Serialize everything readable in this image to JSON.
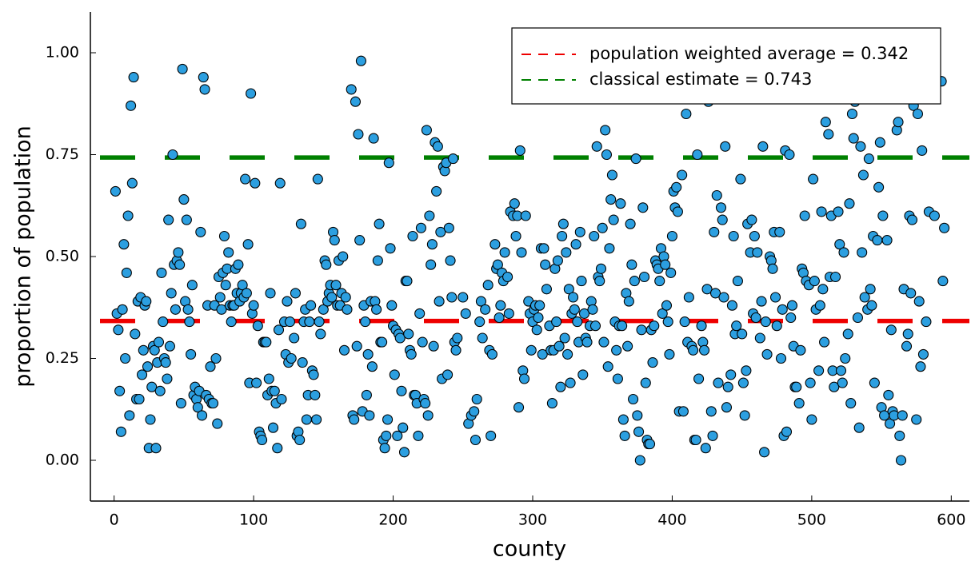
{
  "chart_data": {
    "type": "scatter",
    "xlabel": "county",
    "ylabel": "proportion of population",
    "xlim": [
      -17,
      613
    ],
    "ylim": [
      -0.1,
      1.1
    ],
    "xticks": [
      0,
      100,
      200,
      300,
      400,
      500,
      600
    ],
    "yticks": [
      {
        "value": 0,
        "label": "0.00"
      },
      {
        "value": 0.25,
        "label": "0.25"
      },
      {
        "value": 0.5,
        "label": "0.50"
      },
      {
        "value": 0.75,
        "label": "0.75"
      },
      {
        "value": 1,
        "label": "1.00"
      }
    ],
    "color": "#2c9fe0",
    "legend": "top-right",
    "hlines": [
      {
        "name": "population weighted average = 0.342",
        "value": 0.342,
        "color": "#ee0000"
      },
      {
        "name": "classical estimate = 0.743",
        "value": 0.743,
        "color": "#008000"
      }
    ],
    "x": [
      1,
      2,
      3,
      4,
      5,
      6,
      7,
      8,
      9,
      10,
      11,
      12,
      13,
      14,
      15,
      16,
      17,
      18,
      19,
      20,
      21,
      22,
      23,
      24,
      25,
      26,
      27,
      28,
      29,
      30,
      31,
      32,
      33,
      34,
      35,
      36,
      37,
      38,
      39,
      40,
      41,
      42,
      43,
      44,
      45,
      46,
      47,
      48,
      49,
      50,
      51,
      52,
      53,
      54,
      55,
      56,
      57,
      58,
      59,
      60,
      61,
      62,
      63,
      64,
      65,
      66,
      67,
      68,
      69,
      70,
      71,
      72,
      73,
      74,
      75,
      76,
      77,
      78,
      79,
      80,
      81,
      82,
      83,
      84,
      85,
      86,
      87,
      88,
      89,
      90,
      91,
      92,
      93,
      94,
      95,
      96,
      97,
      98,
      99,
      100,
      101,
      102,
      103,
      104,
      105,
      106,
      107,
      108,
      109,
      110,
      111,
      112,
      113,
      114,
      115,
      116,
      117,
      118,
      119,
      120,
      122,
      123,
      124,
      125,
      126,
      127,
      129,
      130,
      131,
      132,
      133,
      134,
      135,
      136,
      137,
      138,
      139,
      140,
      141,
      142,
      143,
      144,
      145,
      146,
      147,
      148,
      150,
      151,
      152,
      153,
      154,
      155,
      156,
      157,
      158,
      159,
      160,
      161,
      162,
      163,
      164,
      165,
      166,
      167,
      170,
      171,
      172,
      173,
      174,
      175,
      176,
      177,
      178,
      179,
      180,
      181,
      182,
      183,
      184,
      185,
      186,
      187,
      188,
      189,
      190,
      191,
      192,
      193,
      194,
      195,
      196,
      197,
      198,
      199,
      200,
      201,
      202,
      203,
      204,
      205,
      206,
      207,
      208,
      209,
      210,
      211,
      212,
      213,
      214,
      215,
      216,
      217,
      218,
      219,
      220,
      221,
      222,
      223,
      224,
      225,
      226,
      227,
      228,
      229,
      230,
      231,
      232,
      233,
      234,
      235,
      236,
      237,
      238,
      239,
      240,
      241,
      242,
      243,
      244,
      245,
      246,
      250,
      252,
      254,
      256,
      258,
      259,
      260,
      262,
      263,
      264,
      266,
      268,
      269,
      270,
      271,
      273,
      274,
      275,
      276,
      277,
      278,
      279,
      280,
      282,
      283,
      284,
      286,
      287,
      288,
      289,
      290,
      291,
      292,
      293,
      294,
      295,
      297,
      298,
      299,
      300,
      301,
      302,
      303,
      304,
      305,
      306,
      307,
      308,
      309,
      310,
      312,
      313,
      314,
      315,
      316,
      317,
      318,
      319,
      320,
      321,
      322,
      323,
      324,
      325,
      326,
      327,
      328,
      329,
      330,
      331,
      332,
      333,
      334,
      335,
      336,
      337,
      338,
      339,
      341,
      342,
      343,
      344,
      345,
      346,
      347,
      348,
      349,
      350,
      351,
      352,
      353,
      354,
      355,
      356,
      357,
      358,
      359,
      360,
      361,
      362,
      363,
      364,
      365,
      366,
      367,
      368,
      369,
      370,
      371,
      372,
      373,
      374,
      375,
      376,
      377,
      378,
      379,
      380,
      381,
      382,
      383,
      384,
      385,
      386,
      387,
      388,
      389,
      390,
      391,
      392,
      393,
      394,
      395,
      396,
      397,
      398,
      399,
      400,
      401,
      402,
      403,
      404,
      405,
      407,
      408,
      409,
      410,
      411,
      412,
      414,
      415,
      416,
      417,
      418,
      419,
      421,
      422,
      423,
      424,
      425,
      426,
      428,
      429,
      430,
      431,
      432,
      433,
      435,
      436,
      437,
      438,
      439,
      440,
      442,
      443,
      444,
      445,
      446,
      447,
      449,
      450,
      451,
      452,
      453,
      454,
      456,
      457,
      458,
      459,
      460,
      461,
      463,
      464,
      465,
      466,
      467,
      468,
      470,
      471,
      472,
      473,
      474,
      475,
      477,
      478,
      479,
      480,
      481,
      482,
      484,
      485,
      486,
      487,
      488,
      489,
      491,
      492,
      493,
      494,
      495,
      496,
      498,
      499,
      500,
      501,
      502,
      503,
      505,
      506,
      507,
      508,
      509,
      510,
      512,
      513,
      514,
      515,
      516,
      517,
      519,
      520,
      521,
      522,
      523,
      524,
      526,
      527,
      528,
      529,
      530,
      531,
      533,
      534,
      535,
      536,
      537,
      538,
      540,
      541,
      542,
      543,
      544,
      545,
      547,
      548,
      549,
      550,
      551,
      552,
      554,
      555,
      556,
      557,
      558,
      559,
      561,
      562,
      563,
      564,
      565,
      566,
      568,
      569,
      570,
      571,
      572,
      573,
      575,
      576,
      577,
      578,
      579,
      580,
      582,
      584,
      588,
      593,
      594,
      595
    ],
    "values": [
      0.66,
      0.36,
      0.32,
      0.17,
      0.07,
      0.37,
      0.53,
      0.25,
      0.46,
      0.6,
      0.11,
      0.87,
      0.68,
      0.94,
      0.31,
      0.15,
      0.39,
      0.15,
      0.4,
      0.21,
      0.27,
      0.38,
      0.39,
      0.23,
      0.03,
      0.1,
      0.18,
      0.28,
      0.27,
      0.03,
      0.24,
      0.29,
      0.17,
      0.46,
      0.34,
      0.25,
      0.24,
      0.2,
      0.59,
      0.28,
      0.41,
      0.75,
      0.48,
      0.37,
      0.49,
      0.51,
      0.48,
      0.14,
      0.96,
      0.64,
      0.39,
      0.59,
      0.37,
      0.34,
      0.26,
      0.43,
      0.16,
      0.18,
      0.15,
      0.13,
      0.17,
      0.56,
      0.11,
      0.94,
      0.91,
      0.16,
      0.38,
      0.15,
      0.23,
      0.14,
      0.14,
      0.38,
      0.25,
      0.09,
      0.45,
      0.4,
      0.37,
      0.46,
      0.55,
      0.43,
      0.47,
      0.51,
      0.38,
      0.34,
      0.38,
      0.38,
      0.47,
      0.41,
      0.48,
      0.39,
      0.41,
      0.43,
      0.4,
      0.69,
      0.41,
      0.53,
      0.19,
      0.9,
      0.36,
      0.38,
      0.68,
      0.19,
      0.33,
      0.07,
      0.06,
      0.05,
      0.29,
      0.29,
      0.29,
      0.16,
      0.2,
      0.41,
      0.17,
      0.08,
      0.17,
      0.14,
      0.03,
      0.32,
      0.68,
      0.15,
      0.34,
      0.26,
      0.39,
      0.24,
      0.34,
      0.25,
      0.3,
      0.41,
      0.06,
      0.07,
      0.05,
      0.58,
      0.24,
      0.34,
      0.37,
      0.1,
      0.16,
      0.34,
      0.38,
      0.22,
      0.21,
      0.16,
      0.1,
      0.69,
      0.34,
      0.31,
      0.37,
      0.49,
      0.48,
      0.39,
      0.41,
      0.43,
      0.4,
      0.56,
      0.54,
      0.43,
      0.38,
      0.49,
      0.38,
      0.41,
      0.5,
      0.27,
      0.4,
      0.37,
      0.91,
      0.11,
      0.1,
      0.88,
      0.28,
      0.8,
      0.54,
      0.98,
      0.12,
      0.38,
      0.34,
      0.16,
      0.26,
      0.11,
      0.39,
      0.23,
      0.79,
      0.39,
      0.37,
      0.49,
      0.58,
      0.29,
      0.29,
      0.05,
      0.03,
      0.06,
      0.1,
      0.73,
      0.52,
      0.38,
      0.33,
      0.21,
      0.32,
      0.06,
      0.31,
      0.3,
      0.17,
      0.08,
      0.02,
      0.44,
      0.44,
      0.31,
      0.27,
      0.26,
      0.55,
      0.16,
      0.16,
      0.14,
      0.06,
      0.36,
      0.57,
      0.29,
      0.15,
      0.14,
      0.81,
      0.11,
      0.6,
      0.48,
      0.53,
      0.28,
      0.78,
      0.66,
      0.77,
      0.39,
      0.56,
      0.2,
      0.72,
      0.71,
      0.73,
      0.21,
      0.57,
      0.49,
      0.4,
      0.74,
      0.29,
      0.27,
      0.3,
      0.4,
      0.36,
      0.09,
      0.11,
      0.12,
      0.05,
      0.15,
      0.34,
      0.39,
      0.3,
      0.37,
      0.43,
      0.27,
      0.06,
      0.26,
      0.53,
      0.47,
      0.48,
      0.35,
      0.38,
      0.46,
      0.44,
      0.51,
      0.45,
      0.36,
      0.61,
      0.6,
      0.63,
      0.55,
      0.6,
      0.13,
      0.76,
      0.51,
      0.22,
      0.2,
      0.6,
      0.39,
      0.36,
      0.27,
      0.34,
      0.37,
      0.38,
      0.32,
      0.35,
      0.38,
      0.52,
      0.26,
      0.52,
      0.48,
      0.42,
      0.33,
      0.27,
      0.14,
      0.27,
      0.47,
      0.34,
      0.49,
      0.28,
      0.18,
      0.55,
      0.58,
      0.3,
      0.51,
      0.26,
      0.42,
      0.19,
      0.36,
      0.4,
      0.37,
      0.53,
      0.34,
      0.29,
      0.56,
      0.44,
      0.21,
      0.36,
      0.3,
      0.29,
      0.33,
      0.39,
      0.37,
      0.55,
      0.33,
      0.77,
      0.45,
      0.44,
      0.47,
      0.57,
      0.29,
      0.81,
      0.75,
      0.23,
      0.52,
      0.64,
      0.7,
      0.59,
      0.34,
      0.27,
      0.2,
      0.33,
      0.63,
      0.33,
      0.1,
      0.06,
      0.41,
      0.28,
      0.39,
      0.58,
      0.48,
      0.15,
      0.44,
      0.74,
      0.11,
      0.07,
      0.0,
      0.32,
      0.62,
      0.45,
      0.19,
      0.05,
      0.04,
      0.04,
      0.32,
      0.24,
      0.33,
      0.49,
      0.48,
      0.47,
      0.44,
      0.52,
      0.36,
      0.5,
      0.48,
      0.38,
      0.34,
      0.26,
      0.46,
      0.55,
      0.66,
      0.62,
      0.67,
      0.61,
      0.12,
      0.7,
      0.12,
      0.34,
      0.85,
      0.29,
      0.4,
      0.28,
      0.27,
      0.05,
      0.05,
      0.75,
      0.2,
      0.33,
      0.29,
      0.27,
      0.03,
      0.42,
      0.88,
      0.12,
      0.06,
      0.56,
      0.41,
      0.65,
      0.19,
      0.62,
      0.59,
      0.4,
      0.77,
      0.13,
      0.18,
      0.21,
      0.38,
      0.55,
      0.31,
      0.33,
      0.44,
      0.69,
      0.31,
      0.19,
      0.11,
      0.22,
      0.58,
      0.51,
      0.59,
      0.36,
      0.55,
      0.35,
      0.51,
      0.3,
      0.39,
      0.77,
      0.02,
      0.34,
      0.26,
      0.5,
      0.49,
      0.47,
      0.56,
      0.4,
      0.33,
      0.56,
      0.25,
      0.37,
      0.06,
      0.76,
      0.07,
      0.75,
      0.35,
      0.38,
      0.28,
      0.18,
      0.18,
      0.14,
      0.27,
      0.47,
      0.46,
      0.6,
      0.44,
      0.43,
      0.19,
      0.1,
      0.69,
      0.44,
      0.37,
      0.22,
      0.38,
      0.61,
      0.42,
      0.29,
      0.83,
      0.8,
      0.45,
      0.6,
      0.22,
      0.18,
      0.45,
      0.61,
      0.53,
      0.22,
      0.19,
      0.51,
      0.25,
      0.31,
      0.63,
      0.14,
      0.85,
      0.79,
      0.88,
      0.35,
      0.08,
      0.77,
      0.51,
      0.7,
      0.4,
      0.37,
      0.74,
      0.42,
      0.38,
      0.55,
      0.19,
      0.54,
      0.67,
      0.78,
      0.13,
      0.6,
      0.11,
      0.54,
      0.16,
      0.09,
      0.32,
      0.12,
      0.11,
      0.81,
      0.83,
      0.06,
      0.0,
      0.11,
      0.42,
      0.28,
      0.31,
      0.6,
      0.41,
      0.59,
      0.87,
      0.1,
      0.85,
      0.39,
      0.23,
      0.76,
      0.26,
      0.34,
      0.61,
      0.6,
      0.93,
      0.44,
      0.57
    ]
  }
}
